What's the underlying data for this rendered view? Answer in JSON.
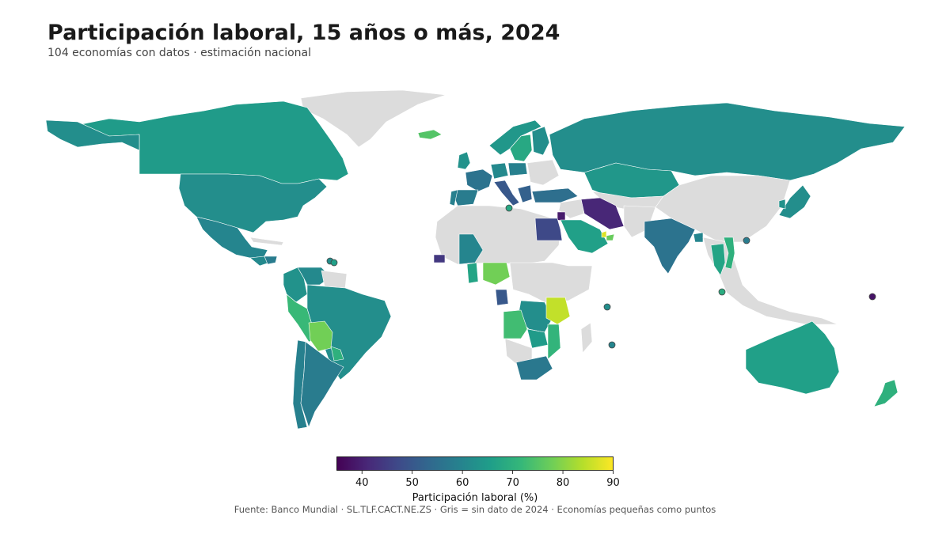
{
  "header": {
    "title": "Participación laboral, 15 años o más, 2024",
    "subtitle": "104 economías con datos · estimación nacional"
  },
  "legend": {
    "label": "Participación laboral (%)",
    "min": 35,
    "max": 90,
    "ticks": [
      "40",
      "50",
      "60",
      "70",
      "80",
      "90"
    ],
    "tick_values": [
      40,
      50,
      60,
      70,
      80,
      90
    ],
    "colormap": "viridis",
    "stops": [
      "#440154",
      "#482878",
      "#3e4a89",
      "#31688e",
      "#26828e",
      "#1f9e89",
      "#35b779",
      "#6ece58",
      "#b5de2b",
      "#fde725"
    ],
    "no_data_color": "#dcdcdc"
  },
  "footer": {
    "source": "Fuente: Banco Mundial · SL.TLF.CACT.NE.ZS · Gris = sin dato de 2024 · Economías pequeñas como puntos"
  },
  "map_data": {
    "no_data_regions": [
      "Greenland",
      "Mongolia",
      "Central Africa",
      "North Africa",
      "Southeast Asia"
    ],
    "countries": [
      {
        "name": "Canada",
        "value": 65
      },
      {
        "name": "United States",
        "value": 62
      },
      {
        "name": "Mexico",
        "value": 60
      },
      {
        "name": "Guatemala",
        "value": 61
      },
      {
        "name": "Honduras",
        "value": 58
      },
      {
        "name": "Colombia",
        "value": 63
      },
      {
        "name": "Venezuela",
        "value": 61
      },
      {
        "name": "Brazil",
        "value": 62
      },
      {
        "name": "Peru",
        "value": 72
      },
      {
        "name": "Bolivia",
        "value": 78
      },
      {
        "name": "Paraguay",
        "value": 70
      },
      {
        "name": "Chile",
        "value": 59
      },
      {
        "name": "Argentina",
        "value": 58
      },
      {
        "name": "Iceland",
        "value": 75
      },
      {
        "name": "Norway",
        "value": 64
      },
      {
        "name": "Sweden",
        "value": 68
      },
      {
        "name": "Finland",
        "value": 62
      },
      {
        "name": "United Kingdom",
        "value": 63
      },
      {
        "name": "France",
        "value": 56
      },
      {
        "name": "Spain",
        "value": 58
      },
      {
        "name": "Portugal",
        "value": 59
      },
      {
        "name": "Germany",
        "value": 61
      },
      {
        "name": "Poland",
        "value": 59
      },
      {
        "name": "Italy",
        "value": 50
      },
      {
        "name": "Greece",
        "value": 52
      },
      {
        "name": "Türkiye",
        "value": 55
      },
      {
        "name": "Russia",
        "value": 62
      },
      {
        "name": "Kazakhstan",
        "value": 64
      },
      {
        "name": "Iran",
        "value": 41
      },
      {
        "name": "Egypt",
        "value": 47
      },
      {
        "name": "Jordan",
        "value": 39
      },
      {
        "name": "Saudi Arabia",
        "value": 66
      },
      {
        "name": "Qatar",
        "value": 87
      },
      {
        "name": "United Arab Emirates",
        "value": 77
      },
      {
        "name": "India",
        "value": 56
      },
      {
        "name": "Bangladesh",
        "value": 60
      },
      {
        "name": "Thailand",
        "value": 67
      },
      {
        "name": "Vietnam",
        "value": 70
      },
      {
        "name": "Japan",
        "value": 62
      },
      {
        "name": "South Korea",
        "value": 63
      },
      {
        "name": "Senegal",
        "value": 44
      },
      {
        "name": "Mali",
        "value": 60
      },
      {
        "name": "Ghana",
        "value": 67
      },
      {
        "name": "Nigeria",
        "value": 78
      },
      {
        "name": "Gabon",
        "value": 50
      },
      {
        "name": "Angola",
        "value": 73
      },
      {
        "name": "DR Congo",
        "value": 62
      },
      {
        "name": "Tanzania",
        "value": 85
      },
      {
        "name": "Zambia",
        "value": 65
      },
      {
        "name": "Mozambique",
        "value": 71
      },
      {
        "name": "South Africa",
        "value": 57
      },
      {
        "name": "Australia",
        "value": 66
      },
      {
        "name": "New Zealand",
        "value": 70
      }
    ],
    "small_economies": [
      {
        "name": "Malta",
        "value": 68
      },
      {
        "name": "Trinidad and Tobago",
        "value": 62
      },
      {
        "name": "Grenada",
        "value": 66
      },
      {
        "name": "Hong Kong",
        "value": 58
      },
      {
        "name": "Singapore",
        "value": 69
      },
      {
        "name": "Seychelles",
        "value": 62
      },
      {
        "name": "Mauritius",
        "value": 60
      },
      {
        "name": "Marshall Islands",
        "value": 38
      }
    ]
  }
}
